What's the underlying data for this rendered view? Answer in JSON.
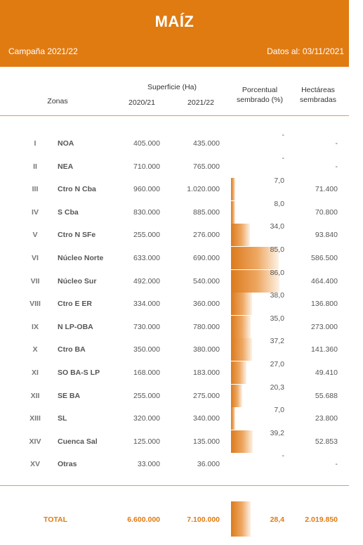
{
  "header": {
    "title": "MAÍZ",
    "campaign": "Campaña 2021/22",
    "data_date": "Datos al: 03/11/2021"
  },
  "columns": {
    "zones": "Zonas",
    "surface": "Superficie (Ha)",
    "year1": "2020/21",
    "year2": "2021/22",
    "percent_line1": "Porcentual",
    "percent_line2": "sembrado (%)",
    "hectares_line1": "Hectáreas",
    "hectares_line2": "sembradas"
  },
  "colors": {
    "accent": "#e07b12",
    "bar": "#dc7a1c"
  },
  "chart_data": {
    "type": "table",
    "rows": [
      {
        "num": "I",
        "zone": "NOA",
        "y2020": "405.000",
        "y2021": "435.000",
        "pct": "-",
        "pct_value": 0,
        "hectares": "-"
      },
      {
        "num": "II",
        "zone": "NEA",
        "y2020": "710.000",
        "y2021": "765.000",
        "pct": "-",
        "pct_value": 0,
        "hectares": "-"
      },
      {
        "num": "III",
        "zone": "Ctro N Cba",
        "y2020": "960.000",
        "y2021": "1.020.000",
        "pct": "7,0",
        "pct_value": 7.0,
        "hectares": "71.400"
      },
      {
        "num": "IV",
        "zone": "S Cba",
        "y2020": "830.000",
        "y2021": "885.000",
        "pct": "8,0",
        "pct_value": 8.0,
        "hectares": "70.800"
      },
      {
        "num": "V",
        "zone": "Ctro N SFe",
        "y2020": "255.000",
        "y2021": "276.000",
        "pct": "34,0",
        "pct_value": 34.0,
        "hectares": "93.840"
      },
      {
        "num": "VI",
        "zone": "Núcleo Norte",
        "y2020": "633.000",
        "y2021": "690.000",
        "pct": "85,0",
        "pct_value": 85.0,
        "hectares": "586.500"
      },
      {
        "num": "VII",
        "zone": "Núcleo Sur",
        "y2020": "492.000",
        "y2021": "540.000",
        "pct": "86,0",
        "pct_value": 86.0,
        "hectares": "464.400"
      },
      {
        "num": "VIII",
        "zone": "Ctro E ER",
        "y2020": "334.000",
        "y2021": "360.000",
        "pct": "38,0",
        "pct_value": 38.0,
        "hectares": "136.800"
      },
      {
        "num": "IX",
        "zone": "N LP-OBA",
        "y2020": "730.000",
        "y2021": "780.000",
        "pct": "35,0",
        "pct_value": 35.0,
        "hectares": "273.000"
      },
      {
        "num": "X",
        "zone": "Ctro BA",
        "y2020": "350.000",
        "y2021": "380.000",
        "pct": "37,2",
        "pct_value": 37.2,
        "hectares": "141.360"
      },
      {
        "num": "XI",
        "zone": "SO BA-S LP",
        "y2020": "168.000",
        "y2021": "183.000",
        "pct": "27,0",
        "pct_value": 27.0,
        "hectares": "49.410"
      },
      {
        "num": "XII",
        "zone": "SE BA",
        "y2020": "255.000",
        "y2021": "275.000",
        "pct": "20,3",
        "pct_value": 20.3,
        "hectares": "55.688"
      },
      {
        "num": "XIII",
        "zone": "SL",
        "y2020": "320.000",
        "y2021": "340.000",
        "pct": "7,0",
        "pct_value": 7.0,
        "hectares": "23.800"
      },
      {
        "num": "XIV",
        "zone": "Cuenca Sal",
        "y2020": "125.000",
        "y2021": "135.000",
        "pct": "39,2",
        "pct_value": 39.2,
        "hectares": "52.853"
      },
      {
        "num": "XV",
        "zone": "Otras",
        "y2020": "33.000",
        "y2021": "36.000",
        "pct": "-",
        "pct_value": 0,
        "hectares": "-"
      }
    ],
    "total": {
      "label": "TOTAL",
      "y2020": "6.600.000",
      "y2021": "7.100.000",
      "pct": "28,4",
      "pct_value": 28.4,
      "hectares": "2.019.850"
    }
  }
}
